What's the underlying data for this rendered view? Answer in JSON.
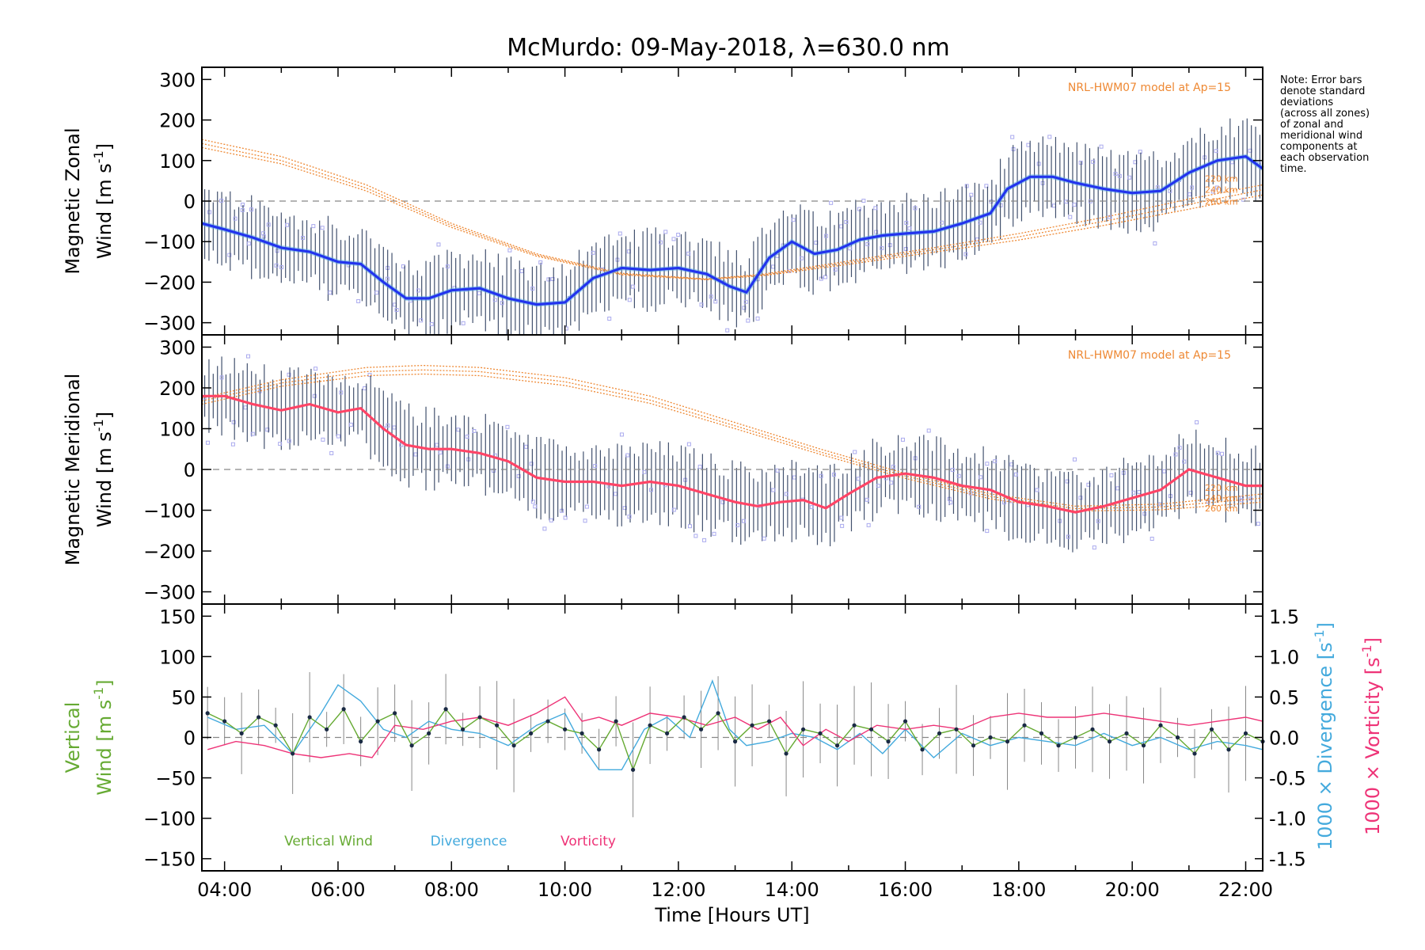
{
  "title": "McMurdo: 09-May-2018, λ=630.0 nm",
  "note": {
    "lines": [
      "Note: Error bars",
      "denote standard",
      "deviations",
      "(across all zones)",
      "of zonal and",
      "meridional wind",
      "components at",
      "each observation",
      "time."
    ]
  },
  "colors": {
    "zonal_mean": "#2233ee",
    "zonal_light": "#55aadd",
    "meridional_mean": "#ff4466",
    "model": "#ee8833",
    "scatter": "#aaaaee",
    "errorbar": "#223355",
    "vertical": "#66aa33",
    "divergence": "#44aadd",
    "vorticity": "#ee3377",
    "zero_line": "#888888"
  },
  "chart_data": [
    {
      "id": "zonal",
      "type": "line",
      "ylabel_line1": "Magnetic Zonal",
      "ylabel_line2": "Wind",
      "ylabel_units": "[m s",
      "ylabel_sup": "-1",
      "ylabel_close": "]",
      "ylim": [
        -330,
        330
      ],
      "yticks": [
        300,
        200,
        100,
        0,
        -100,
        -200,
        -300
      ],
      "xlim": [
        3.6,
        22.3
      ],
      "model_label": "NRL-HWM07 model at Ap=15",
      "model_heights": [
        "220 km",
        "240 km",
        "260 km"
      ],
      "series": [
        {
          "name": "mean zonal wind",
          "x": [
            3.6,
            4.0,
            4.5,
            5.0,
            5.5,
            6.0,
            6.4,
            6.8,
            7.2,
            7.6,
            8.0,
            8.5,
            9.0,
            9.5,
            10.0,
            10.5,
            11.0,
            11.5,
            12.0,
            12.5,
            12.9,
            13.2,
            13.6,
            14.0,
            14.4,
            14.8,
            15.2,
            15.6,
            16.0,
            16.5,
            17.0,
            17.5,
            17.8,
            18.2,
            18.6,
            19.0,
            19.5,
            20.0,
            20.5,
            21.0,
            21.5,
            22.0,
            22.3
          ],
          "y": [
            -55,
            -70,
            -90,
            -115,
            -125,
            -150,
            -155,
            -200,
            -240,
            -240,
            -220,
            -215,
            -240,
            -255,
            -250,
            -190,
            -165,
            -170,
            -165,
            -180,
            -210,
            -225,
            -140,
            -100,
            -130,
            -120,
            -95,
            -85,
            -80,
            -75,
            -55,
            -30,
            30,
            60,
            60,
            45,
            30,
            20,
            25,
            70,
            100,
            110,
            80
          ]
        },
        {
          "name": "NRL-HWM07 220 km",
          "x": [
            3.6,
            5.0,
            6.5,
            8.0,
            9.5,
            11.0,
            12.5,
            13.5,
            15.0,
            16.5,
            18.0,
            19.5,
            21.0,
            22.3
          ],
          "y": [
            152,
            110,
            40,
            -55,
            -130,
            -178,
            -192,
            -180,
            -148,
            -115,
            -80,
            -40,
            5,
            40
          ]
        },
        {
          "name": "NRL-HWM07 240 km",
          "x": [
            3.6,
            5.0,
            6.5,
            8.0,
            9.5,
            11.0,
            12.5,
            13.5,
            15.0,
            16.5,
            18.0,
            19.5,
            21.0,
            22.3
          ],
          "y": [
            142,
            100,
            32,
            -60,
            -133,
            -180,
            -193,
            -182,
            -152,
            -120,
            -88,
            -50,
            -8,
            28
          ]
        },
        {
          "name": "NRL-HWM07 260 km",
          "x": [
            3.6,
            5.0,
            6.5,
            8.0,
            9.5,
            11.0,
            12.5,
            13.5,
            15.0,
            16.5,
            18.0,
            19.5,
            21.0,
            22.3
          ],
          "y": [
            132,
            92,
            25,
            -65,
            -136,
            -182,
            -194,
            -184,
            -156,
            -126,
            -96,
            -60,
            -20,
            15
          ]
        }
      ]
    },
    {
      "id": "meridional",
      "type": "line",
      "ylabel_line1": "Magnetic Meridional",
      "ylabel_line2": "Wind",
      "ylabel_units": "[m s",
      "ylabel_sup": "-1",
      "ylabel_close": "]",
      "ylim": [
        -330,
        330
      ],
      "yticks": [
        300,
        200,
        100,
        0,
        -100,
        -200,
        -300
      ],
      "xlim": [
        3.6,
        22.3
      ],
      "model_label": "NRL-HWM07 model at Ap=15",
      "model_heights": [
        "220 km",
        "240 km",
        "260 km"
      ],
      "series": [
        {
          "name": "mean meridional wind",
          "x": [
            3.6,
            4.0,
            4.5,
            5.0,
            5.5,
            6.0,
            6.4,
            6.8,
            7.2,
            7.6,
            8.0,
            8.5,
            9.0,
            9.5,
            10.0,
            10.5,
            11.0,
            11.5,
            12.0,
            12.5,
            13.0,
            13.4,
            13.8,
            14.2,
            14.6,
            15.0,
            15.5,
            16.0,
            16.5,
            17.0,
            17.5,
            18.0,
            18.5,
            19.0,
            19.5,
            20.0,
            20.5,
            21.0,
            21.5,
            22.0,
            22.3
          ],
          "y": [
            180,
            180,
            160,
            145,
            160,
            140,
            150,
            100,
            60,
            50,
            50,
            40,
            20,
            -20,
            -30,
            -30,
            -40,
            -30,
            -40,
            -60,
            -80,
            -90,
            -80,
            -75,
            -95,
            -60,
            -20,
            -10,
            -20,
            -40,
            -50,
            -80,
            -90,
            -105,
            -90,
            -70,
            -50,
            0,
            -20,
            -40,
            -40
          ]
        },
        {
          "name": "NRL-HWM07 220 km",
          "x": [
            3.6,
            5.0,
            6.5,
            7.5,
            8.5,
            10.0,
            11.5,
            13.0,
            14.5,
            16.0,
            17.5,
            19.0,
            20.5,
            22.3
          ],
          "y": [
            175,
            220,
            250,
            255,
            250,
            225,
            180,
            115,
            50,
            -10,
            -60,
            -90,
            -85,
            -60
          ]
        },
        {
          "name": "NRL-HWM07 240 km",
          "x": [
            3.6,
            5.0,
            6.5,
            7.5,
            8.5,
            10.0,
            11.5,
            13.0,
            14.5,
            16.0,
            17.5,
            19.0,
            20.5,
            22.3
          ],
          "y": [
            168,
            212,
            240,
            244,
            240,
            215,
            170,
            107,
            43,
            -16,
            -66,
            -96,
            -92,
            -70
          ]
        },
        {
          "name": "NRL-HWM07 260 km",
          "x": [
            3.6,
            5.0,
            6.5,
            7.5,
            8.5,
            10.0,
            11.5,
            13.0,
            14.5,
            16.0,
            17.5,
            19.0,
            20.5,
            22.3
          ],
          "y": [
            160,
            204,
            230,
            234,
            230,
            206,
            162,
            100,
            37,
            -22,
            -72,
            -102,
            -99,
            -80
          ]
        }
      ]
    },
    {
      "id": "vertical",
      "type": "line",
      "ylabel_line1": "Vertical",
      "ylabel_line2": "Wind",
      "ylabel_units": "[m s",
      "ylabel_sup": "-1",
      "ylabel_close": "]",
      "ylim": [
        -165,
        165
      ],
      "yticks": [
        150,
        100,
        50,
        0,
        -50,
        -100,
        -150
      ],
      "y2lim": [
        -1.65,
        1.65
      ],
      "y2ticks": [
        1.5,
        1.0,
        0.5,
        0.0,
        -0.5,
        -1.0,
        -1.5
      ],
      "y2label_div_text": "1000 × Divergence [s",
      "y2label_vor_text": "1000 × Vorticity [s",
      "y2label_sup": "-1",
      "y2label_close": "]",
      "xlim": [
        3.6,
        22.3
      ],
      "xlabel": "Time [Hours UT]",
      "xticks": [
        4,
        6,
        8,
        10,
        12,
        14,
        16,
        18,
        20,
        22
      ],
      "xtick_labels": [
        "04:00",
        "06:00",
        "08:00",
        "10:00",
        "12:00",
        "14:00",
        "16:00",
        "18:00",
        "20:00",
        "22:00"
      ],
      "legend": [
        "Vertical Wind",
        "Divergence",
        "Vorticity"
      ],
      "series": [
        {
          "name": "Vertical Wind",
          "axis": "left",
          "x": [
            3.7,
            4.0,
            4.3,
            4.6,
            4.9,
            5.2,
            5.5,
            5.8,
            6.1,
            6.4,
            6.7,
            7.0,
            7.3,
            7.6,
            7.9,
            8.2,
            8.5,
            8.8,
            9.1,
            9.4,
            9.7,
            10.0,
            10.3,
            10.6,
            10.9,
            11.2,
            11.5,
            11.8,
            12.1,
            12.4,
            12.7,
            13.0,
            13.3,
            13.6,
            13.9,
            14.2,
            14.5,
            14.8,
            15.1,
            15.4,
            15.7,
            16.0,
            16.3,
            16.6,
            16.9,
            17.2,
            17.5,
            17.8,
            18.1,
            18.4,
            18.7,
            19.0,
            19.3,
            19.6,
            19.9,
            20.2,
            20.5,
            20.8,
            21.1,
            21.4,
            21.7,
            22.0,
            22.3
          ],
          "y": [
            30,
            20,
            5,
            25,
            15,
            -20,
            25,
            10,
            35,
            -5,
            20,
            30,
            -10,
            5,
            35,
            10,
            25,
            15,
            -10,
            5,
            20,
            10,
            5,
            -15,
            20,
            -40,
            15,
            5,
            25,
            10,
            30,
            -5,
            15,
            20,
            -20,
            10,
            5,
            -10,
            15,
            10,
            -5,
            20,
            -15,
            5,
            10,
            -10,
            0,
            -5,
            15,
            5,
            -10,
            0,
            10,
            -5,
            5,
            -10,
            15,
            0,
            -20,
            10,
            -15,
            5,
            -5
          ]
        },
        {
          "name": "Divergence",
          "axis": "right",
          "x": [
            3.7,
            4.2,
            4.7,
            5.2,
            5.7,
            6.0,
            6.4,
            6.8,
            7.2,
            7.6,
            8.0,
            8.5,
            9.0,
            9.5,
            10.0,
            10.3,
            10.6,
            11.0,
            11.4,
            11.8,
            12.2,
            12.6,
            12.9,
            13.2,
            13.6,
            14.0,
            14.4,
            14.8,
            15.2,
            15.6,
            16.0,
            16.5,
            17.0,
            17.5,
            18.0,
            18.5,
            19.0,
            19.5,
            20.0,
            20.5,
            21.0,
            21.5,
            22.0,
            22.3
          ],
          "y": [
            0.25,
            0.1,
            0.15,
            -0.2,
            0.3,
            0.65,
            0.45,
            0.1,
            0.0,
            0.2,
            0.1,
            0.05,
            -0.1,
            0.15,
            0.3,
            -0.1,
            -0.4,
            -0.4,
            0.1,
            0.25,
            0.0,
            0.7,
            0.1,
            -0.1,
            -0.05,
            0.05,
            0.0,
            -0.15,
            0.05,
            -0.2,
            0.1,
            -0.25,
            0.05,
            -0.1,
            0.0,
            -0.05,
            -0.1,
            0.05,
            -0.1,
            0.0,
            -0.15,
            -0.05,
            -0.1,
            -0.15
          ]
        },
        {
          "name": "Vorticity",
          "axis": "right",
          "x": [
            3.7,
            4.2,
            4.7,
            5.2,
            5.7,
            6.2,
            6.6,
            7.0,
            7.5,
            8.0,
            8.5,
            9.0,
            9.5,
            10.0,
            10.3,
            10.6,
            11.0,
            11.5,
            12.0,
            12.5,
            13.0,
            13.4,
            13.8,
            14.2,
            14.6,
            15.0,
            15.5,
            16.0,
            16.5,
            17.0,
            17.5,
            18.0,
            18.5,
            19.0,
            19.5,
            20.0,
            20.5,
            21.0,
            21.5,
            22.0,
            22.3
          ],
          "y": [
            -0.15,
            -0.05,
            -0.1,
            -0.2,
            -0.25,
            -0.2,
            -0.25,
            0.15,
            0.1,
            0.2,
            0.25,
            0.15,
            0.3,
            0.5,
            0.2,
            0.25,
            0.15,
            0.3,
            0.25,
            0.15,
            0.25,
            0.1,
            0.25,
            -0.1,
            0.1,
            -0.05,
            0.15,
            0.1,
            0.15,
            0.1,
            0.25,
            0.3,
            0.25,
            0.25,
            0.3,
            0.25,
            0.2,
            0.15,
            0.2,
            0.25,
            0.2
          ]
        }
      ]
    }
  ]
}
